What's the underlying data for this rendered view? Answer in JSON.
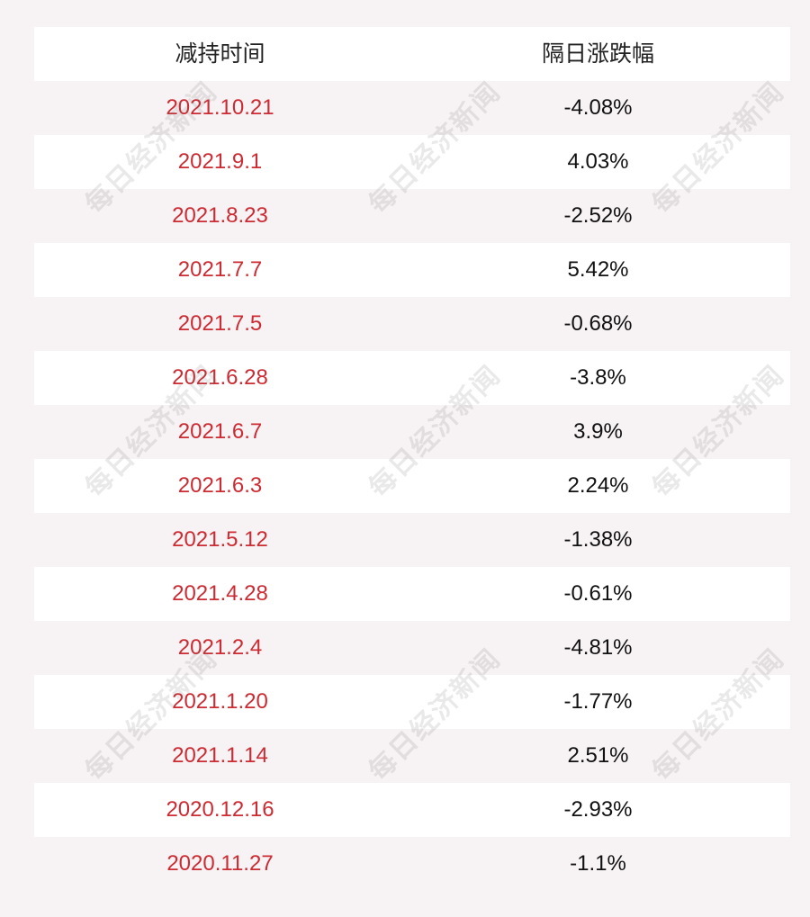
{
  "header": {
    "col_date": "减持时间",
    "col_change": "隔日涨跌幅"
  },
  "rows": [
    {
      "date": "2021.10.21",
      "change": "-4.08%"
    },
    {
      "date": "2021.9.1",
      "change": "4.03%"
    },
    {
      "date": "2021.8.23",
      "change": "-2.52%"
    },
    {
      "date": "2021.7.7",
      "change": "5.42%"
    },
    {
      "date": "2021.7.5",
      "change": "-0.68%"
    },
    {
      "date": "2021.6.28",
      "change": "-3.8%"
    },
    {
      "date": "2021.6.7",
      "change": "3.9%"
    },
    {
      "date": "2021.6.3",
      "change": "2.24%"
    },
    {
      "date": "2021.5.12",
      "change": "-1.38%"
    },
    {
      "date": "2021.4.28",
      "change": "-0.61%"
    },
    {
      "date": "2021.2.4",
      "change": "-4.81%"
    },
    {
      "date": "2021.1.20",
      "change": "-1.77%"
    },
    {
      "date": "2021.1.14",
      "change": "2.51%"
    },
    {
      "date": "2020.12.16",
      "change": "-2.93%"
    },
    {
      "date": "2020.11.27",
      "change": "-1.1%"
    }
  ],
  "watermark": {
    "text": "每日经济新闻"
  },
  "colors": {
    "date_text": "#cc2b33",
    "change_text": "#111111",
    "header_text": "#222222",
    "row_white": "#ffffff",
    "row_tint": "#f7f2f3"
  }
}
